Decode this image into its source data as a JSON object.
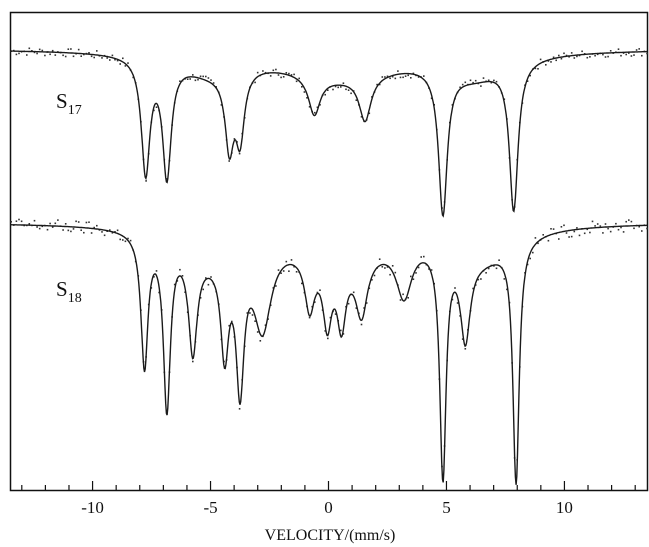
{
  "chart_data": {
    "type": "line",
    "title": "",
    "xlabel": "VELOCITY/(mm/s)",
    "ylabel": "",
    "xlim": [
      -13.5,
      13.5
    ],
    "x_ticks": [
      {
        "value": -10,
        "label": "-10"
      },
      {
        "value": -5,
        "label": "-5"
      },
      {
        "value": 0,
        "label": "0"
      },
      {
        "value": 5,
        "label": "5"
      },
      {
        "value": 10,
        "label": "10"
      }
    ],
    "y_ticks": "none",
    "grid": false,
    "legend": "none",
    "line_color": "#1a1a1a",
    "point_color": "#333333",
    "series": [
      {
        "name": "S17",
        "label_main": "S",
        "label_sub": "17",
        "baseline": 0,
        "ylim": [
          -1.0,
          0.1
        ],
        "components": [
          {
            "center": -7.75,
            "depth": 0.78,
            "hwhm": 0.22
          },
          {
            "center": -6.85,
            "depth": 0.78,
            "hwhm": 0.22
          },
          {
            "center": -4.2,
            "depth": 0.5,
            "hwhm": 0.22
          },
          {
            "center": -3.75,
            "depth": 0.45,
            "hwhm": 0.22
          },
          {
            "center": -0.6,
            "depth": 0.26,
            "hwhm": 0.3
          },
          {
            "center": 1.55,
            "depth": 0.3,
            "hwhm": 0.3
          },
          {
            "center": 4.85,
            "depth": 0.98,
            "hwhm": 0.22
          },
          {
            "center": 7.85,
            "depth": 1.0,
            "hwhm": 0.22
          },
          {
            "center": -5.0,
            "depth": 0.12,
            "hwhm": 1.6
          },
          {
            "center": 0.5,
            "depth": 0.18,
            "hwhm": 3.0
          },
          {
            "center": 6.2,
            "depth": 0.15,
            "hwhm": 1.6
          }
        ]
      },
      {
        "name": "S18",
        "label_main": "S",
        "label_sub": "18",
        "baseline": 0,
        "ylim": [
          -1.0,
          0.1
        ],
        "components": [
          {
            "center": -7.8,
            "depth": 0.55,
            "hwhm": 0.18
          },
          {
            "center": -6.85,
            "depth": 0.7,
            "hwhm": 0.18
          },
          {
            "center": -5.75,
            "depth": 0.42,
            "hwhm": 0.22
          },
          {
            "center": -4.4,
            "depth": 0.4,
            "hwhm": 0.2
          },
          {
            "center": -3.75,
            "depth": 0.55,
            "hwhm": 0.2
          },
          {
            "center": -2.8,
            "depth": 0.35,
            "hwhm": 0.45
          },
          {
            "center": -0.8,
            "depth": 0.22,
            "hwhm": 0.25
          },
          {
            "center": -0.05,
            "depth": 0.26,
            "hwhm": 0.22
          },
          {
            "center": 0.55,
            "depth": 0.26,
            "hwhm": 0.22
          },
          {
            "center": 1.4,
            "depth": 0.24,
            "hwhm": 0.3
          },
          {
            "center": 3.2,
            "depth": 0.22,
            "hwhm": 0.4
          },
          {
            "center": 4.85,
            "depth": 0.95,
            "hwhm": 0.16
          },
          {
            "center": 5.8,
            "depth": 0.35,
            "hwhm": 0.25
          },
          {
            "center": 7.95,
            "depth": 1.0,
            "hwhm": 0.16
          },
          {
            "center": -5.0,
            "depth": 0.1,
            "hwhm": 1.5
          },
          {
            "center": 0.5,
            "depth": 0.12,
            "hwhm": 2.5
          },
          {
            "center": 6.5,
            "depth": 0.12,
            "hwhm": 1.5
          }
        ]
      }
    ]
  }
}
